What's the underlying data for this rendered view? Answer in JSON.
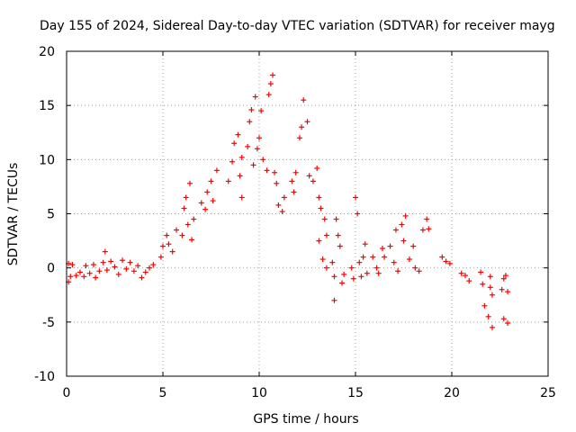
{
  "chart_data": {
    "type": "scatter",
    "title": "Day 155 of 2024, Sidereal Day-to-day VTEC variation (SDTVAR) for receiver mayg",
    "xlabel": "GPS time / hours",
    "ylabel": "SDTVAR / TECUs",
    "xlim": [
      0,
      25
    ],
    "ylim": [
      -10,
      20
    ],
    "xticks": [
      "0",
      "5",
      "10",
      "15",
      "20",
      "25"
    ],
    "yticks": [
      "-10",
      "-5",
      "0",
      "5",
      "10",
      "15",
      "20"
    ],
    "grid": true,
    "marker": "+",
    "color": "#ff0000",
    "series": [
      {
        "name": "SDTVAR",
        "points": [
          [
            0.1,
            0.4
          ],
          [
            0.1,
            -1.3
          ],
          [
            0.2,
            -0.8
          ],
          [
            0.3,
            0.3
          ],
          [
            0.5,
            -0.7
          ],
          [
            0.7,
            -0.4
          ],
          [
            0.9,
            -0.8
          ],
          [
            1.0,
            0.2
          ],
          [
            1.2,
            -0.5
          ],
          [
            1.4,
            0.3
          ],
          [
            1.5,
            -0.9
          ],
          [
            1.7,
            -0.3
          ],
          [
            1.9,
            0.5
          ],
          [
            2.0,
            1.5
          ],
          [
            2.1,
            -0.2
          ],
          [
            2.3,
            0.6
          ],
          [
            2.5,
            0.1
          ],
          [
            2.7,
            -0.6
          ],
          [
            2.9,
            0.7
          ],
          [
            3.1,
            -0.1
          ],
          [
            3.3,
            0.5
          ],
          [
            3.5,
            -0.3
          ],
          [
            3.7,
            0.2
          ],
          [
            3.9,
            -0.9
          ],
          [
            4.1,
            -0.4
          ],
          [
            4.3,
            0.0
          ],
          [
            4.5,
            0.3
          ],
          [
            4.9,
            1.0
          ],
          [
            5.0,
            2.0
          ],
          [
            5.2,
            3.0
          ],
          [
            5.3,
            2.2
          ],
          [
            5.5,
            1.5
          ],
          [
            5.7,
            3.5
          ],
          [
            6.0,
            3.0
          ],
          [
            6.1,
            5.5
          ],
          [
            6.2,
            6.5
          ],
          [
            6.3,
            4.0
          ],
          [
            6.4,
            7.8
          ],
          [
            6.5,
            2.6
          ],
          [
            6.6,
            4.5
          ],
          [
            7.0,
            6.0
          ],
          [
            7.2,
            5.4
          ],
          [
            7.3,
            7.0
          ],
          [
            7.5,
            8.0
          ],
          [
            7.6,
            6.2
          ],
          [
            7.8,
            9.0
          ],
          [
            8.4,
            8.0
          ],
          [
            8.6,
            9.8
          ],
          [
            8.7,
            11.5
          ],
          [
            8.9,
            12.3
          ],
          [
            9.0,
            8.5
          ],
          [
            9.1,
            10.2
          ],
          [
            9.1,
            6.5
          ],
          [
            9.4,
            11.2
          ],
          [
            9.5,
            13.5
          ],
          [
            9.6,
            14.6
          ],
          [
            9.7,
            9.5
          ],
          [
            9.8,
            15.8
          ],
          [
            9.9,
            11.0
          ],
          [
            10.0,
            12.0
          ],
          [
            10.1,
            14.5
          ],
          [
            10.2,
            10.0
          ],
          [
            10.4,
            9.0
          ],
          [
            10.5,
            16.0
          ],
          [
            10.6,
            17.0
          ],
          [
            10.7,
            17.8
          ],
          [
            10.8,
            8.8
          ],
          [
            10.9,
            7.8
          ],
          [
            11.0,
            5.8
          ],
          [
            11.2,
            5.2
          ],
          [
            11.3,
            6.5
          ],
          [
            11.7,
            8.0
          ],
          [
            11.8,
            7.0
          ],
          [
            11.9,
            8.8
          ],
          [
            12.1,
            12.0
          ],
          [
            12.2,
            13.0
          ],
          [
            12.3,
            15.5
          ],
          [
            12.5,
            13.5
          ],
          [
            12.6,
            8.5
          ],
          [
            12.8,
            8.0
          ],
          [
            13.0,
            9.2
          ],
          [
            13.1,
            6.5
          ],
          [
            13.2,
            5.5
          ],
          [
            13.4,
            4.5
          ],
          [
            13.5,
            3.0
          ],
          [
            13.1,
            2.5
          ],
          [
            13.3,
            0.8
          ],
          [
            13.5,
            0.0
          ],
          [
            13.8,
            0.5
          ],
          [
            13.9,
            -0.8
          ],
          [
            14.0,
            4.5
          ],
          [
            14.1,
            3.0
          ],
          [
            14.2,
            2.0
          ],
          [
            14.3,
            -1.4
          ],
          [
            14.4,
            -0.6
          ],
          [
            13.9,
            -3.0
          ],
          [
            14.8,
            0.0
          ],
          [
            14.9,
            -1.0
          ],
          [
            15.0,
            6.5
          ],
          [
            15.1,
            5.0
          ],
          [
            15.2,
            0.5
          ],
          [
            15.3,
            -0.8
          ],
          [
            15.4,
            1.0
          ],
          [
            15.5,
            2.2
          ],
          [
            15.6,
            -0.5
          ],
          [
            15.9,
            1.0
          ],
          [
            16.1,
            0.0
          ],
          [
            16.2,
            -0.5
          ],
          [
            16.4,
            1.8
          ],
          [
            16.5,
            1.0
          ],
          [
            16.8,
            2.0
          ],
          [
            17.0,
            0.5
          ],
          [
            17.1,
            3.5
          ],
          [
            17.2,
            -0.3
          ],
          [
            17.4,
            4.0
          ],
          [
            17.5,
            2.5
          ],
          [
            17.6,
            4.8
          ],
          [
            17.8,
            0.8
          ],
          [
            18.0,
            2.0
          ],
          [
            18.1,
            0.0
          ],
          [
            18.3,
            -0.3
          ],
          [
            18.5,
            3.5
          ],
          [
            18.7,
            4.5
          ],
          [
            18.8,
            3.6
          ],
          [
            19.5,
            1.0
          ],
          [
            19.7,
            0.6
          ],
          [
            19.9,
            0.4
          ],
          [
            20.5,
            -0.5
          ],
          [
            20.7,
            -0.7
          ],
          [
            20.9,
            -1.2
          ],
          [
            21.5,
            -0.4
          ],
          [
            21.6,
            -1.5
          ],
          [
            21.7,
            -3.5
          ],
          [
            21.9,
            -4.5
          ],
          [
            22.1,
            -5.5
          ],
          [
            22.0,
            -1.8
          ],
          [
            22.1,
            -2.5
          ],
          [
            22.0,
            -0.8
          ],
          [
            22.6,
            -2.0
          ],
          [
            22.7,
            -1.0
          ],
          [
            22.8,
            -0.7
          ],
          [
            22.9,
            -2.2
          ],
          [
            22.7,
            -4.7
          ],
          [
            22.9,
            -5.1
          ]
        ]
      }
    ]
  }
}
